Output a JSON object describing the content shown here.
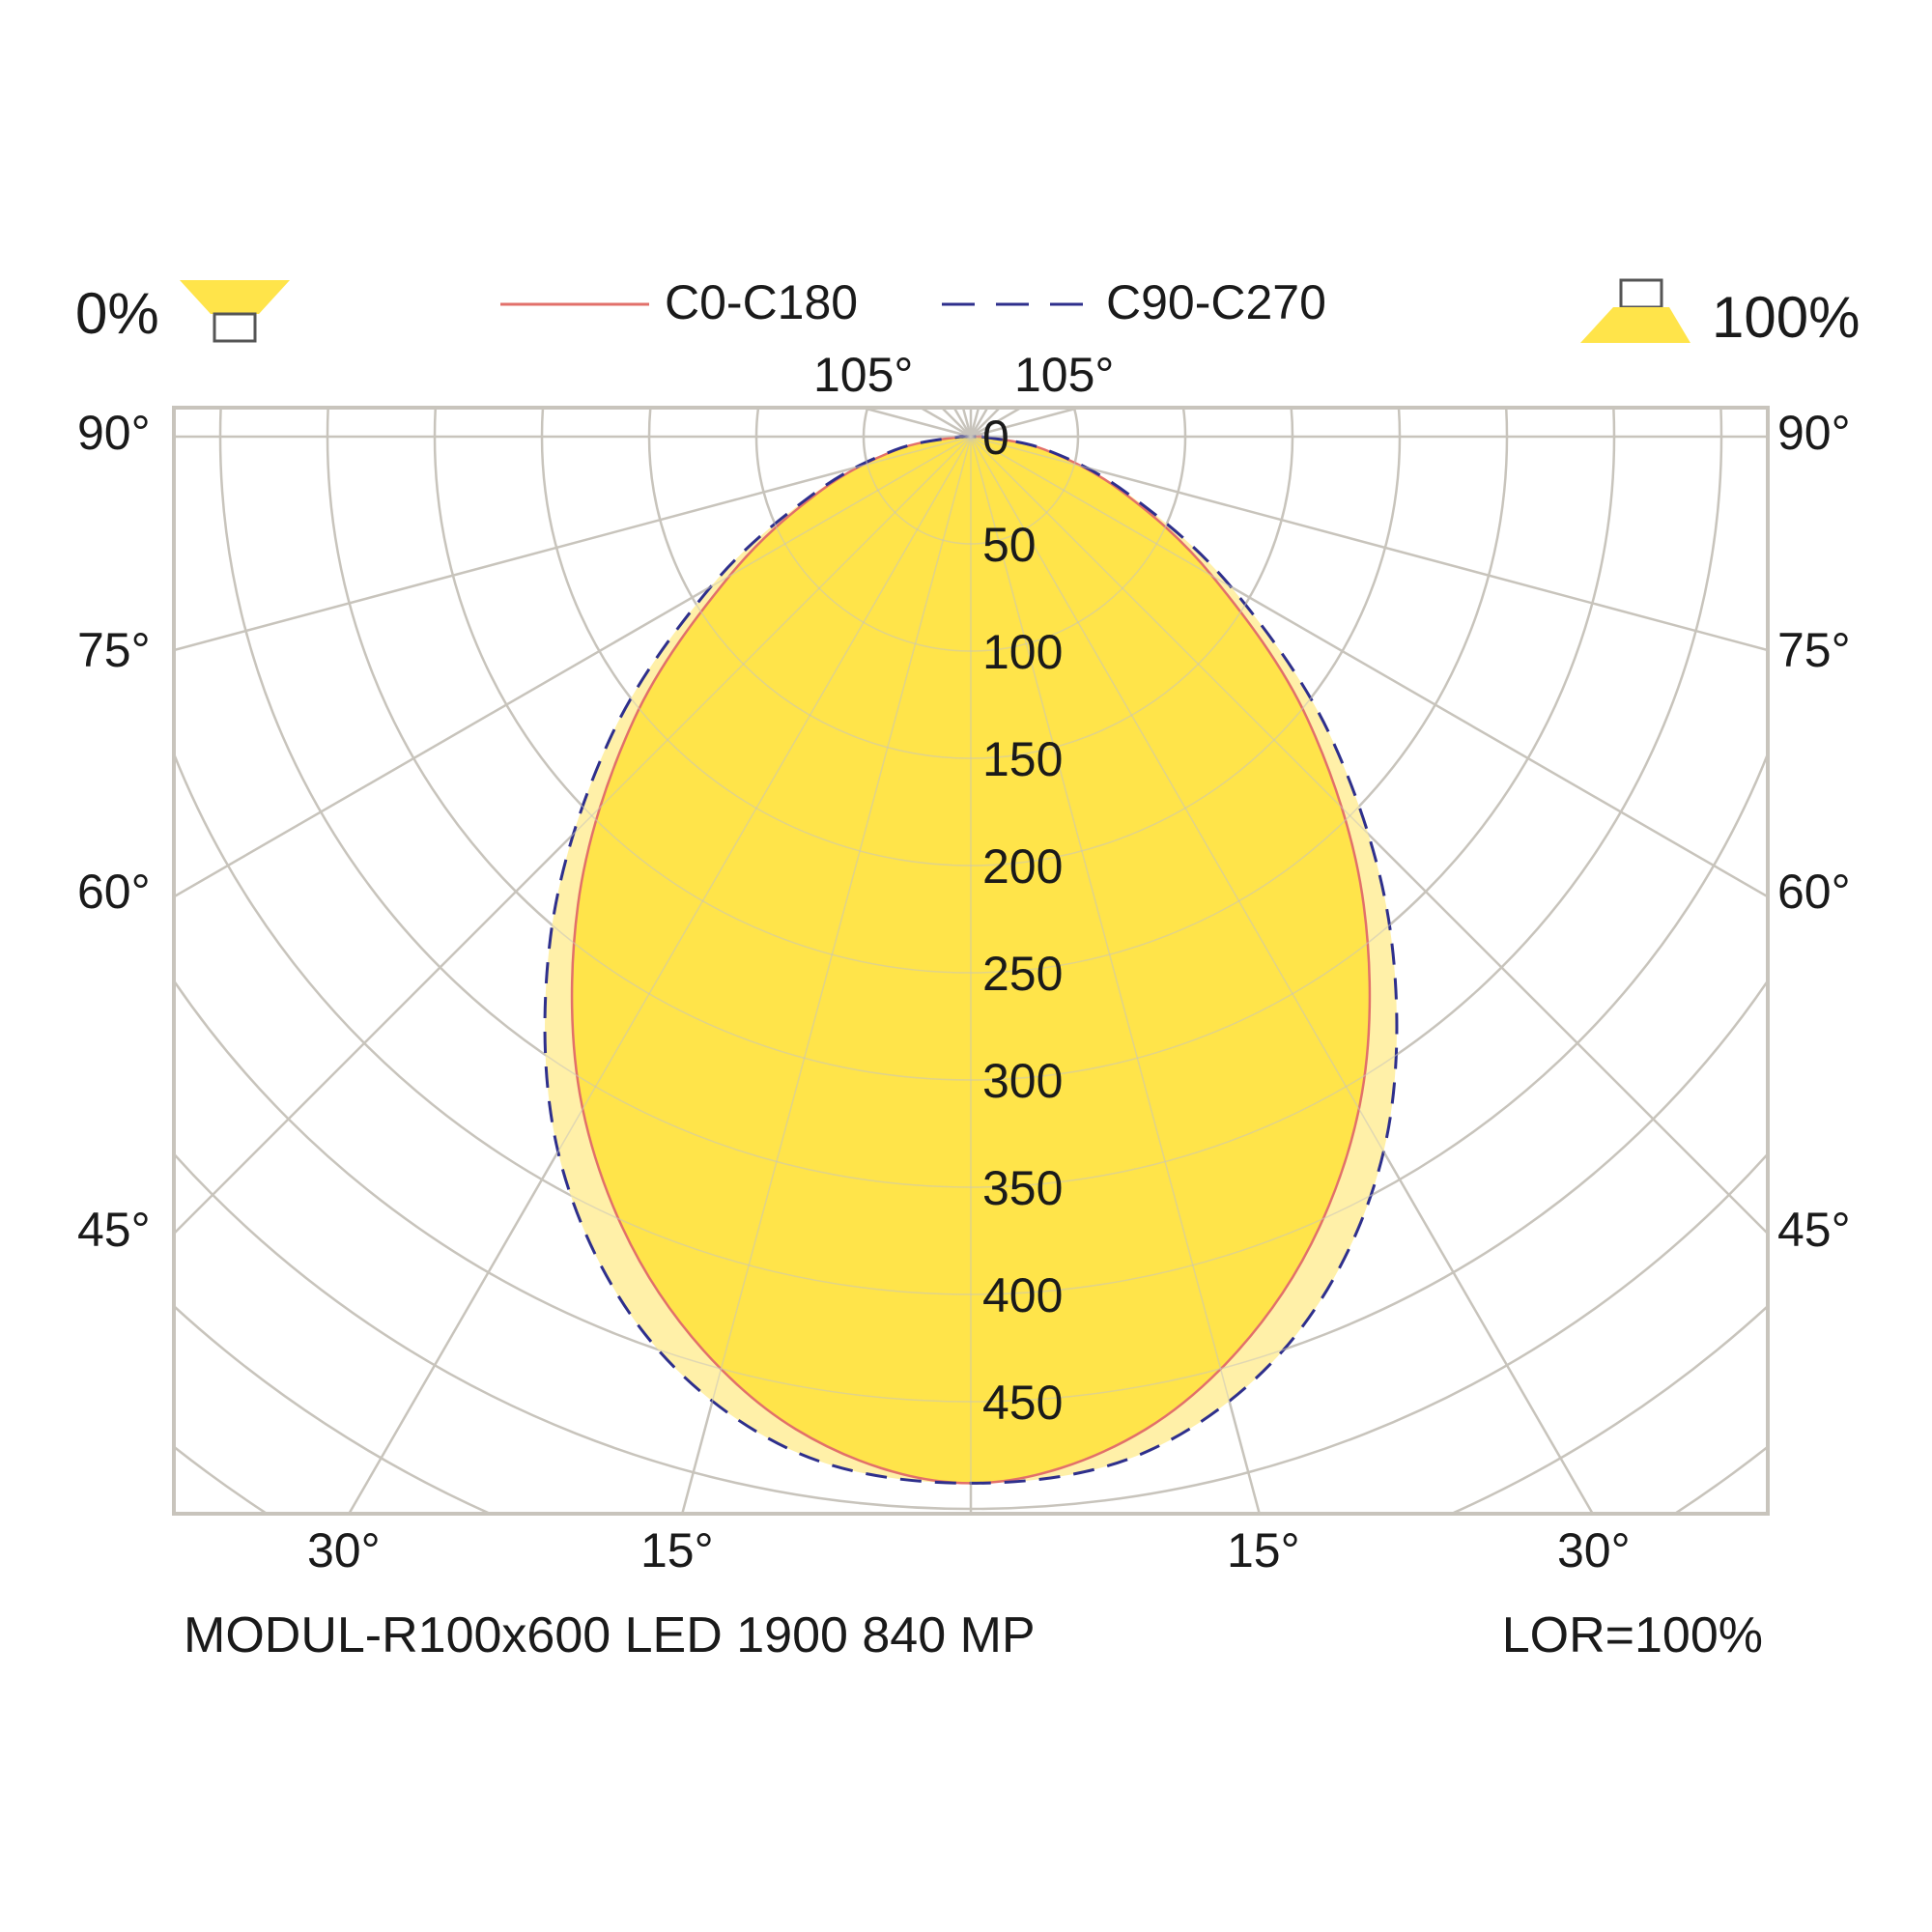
{
  "header": {
    "downward_percent": "0%",
    "upward_percent": "100%",
    "legend_c0": "C0-C180",
    "legend_c90": "C90-C270"
  },
  "top_angle_labels": [
    "105°",
    "105°"
  ],
  "left_angle_labels": [
    "90°",
    "75°",
    "60°",
    "45°"
  ],
  "right_angle_labels": [
    "90°",
    "75°",
    "60°",
    "45°"
  ],
  "bottom_angle_labels": [
    "30°",
    "15°",
    "15°",
    "30°"
  ],
  "footer": {
    "model": "MODUL-R100x600 LED 1900 840 MP",
    "lor": "LOR=100%"
  },
  "colors": {
    "fill_main": "#ffe44a",
    "fill_light": "#fff0a8",
    "c0_line": "#e2706a",
    "c90_line": "#2e2f8c",
    "grid": "#c8c4bc"
  },
  "chart_data": {
    "type": "polar",
    "radial_unit": "cd/klm",
    "radial_ticks": [
      0,
      50,
      100,
      150,
      200,
      250,
      300,
      350,
      400,
      450
    ],
    "angle_labels_deg": [
      15,
      30,
      45,
      60,
      75,
      90,
      105
    ],
    "series": [
      {
        "name": "C0-C180",
        "style": "solid",
        "angles_deg": [
          0,
          10,
          20,
          30,
          40,
          50,
          60,
          70,
          80,
          90
        ],
        "values": [
          488,
          470,
          425,
          362,
          285,
          205,
          130,
          75,
          35,
          5
        ]
      },
      {
        "name": "C90-C270",
        "style": "dashed",
        "angles_deg": [
          0,
          10,
          20,
          30,
          40,
          50,
          60,
          70,
          80,
          90
        ],
        "values": [
          488,
          480,
          445,
          385,
          305,
          220,
          140,
          78,
          36,
          5
        ]
      }
    ]
  }
}
